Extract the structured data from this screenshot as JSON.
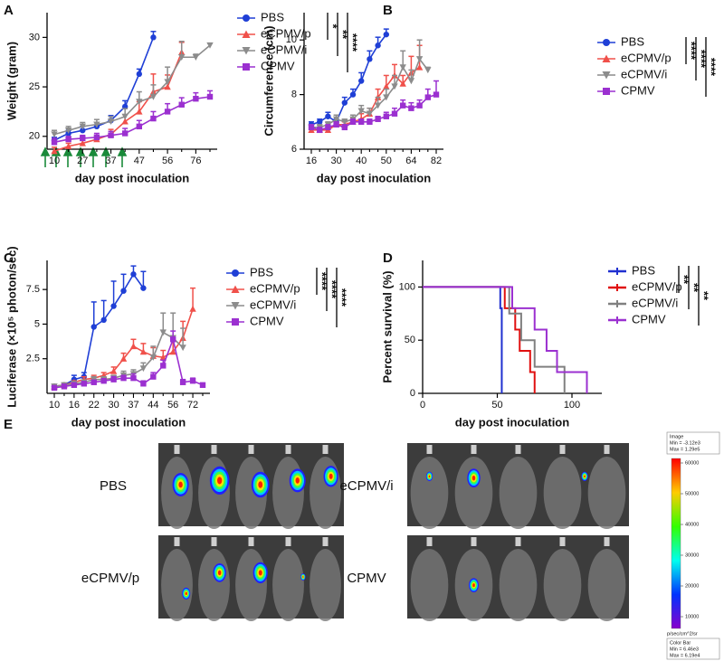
{
  "chart_data": [
    {
      "type": "line",
      "panel_label": "A",
      "ylabel": "Weight (gram)",
      "xlabel": "day post inoculation",
      "categories": [
        "10",
        null,
        "27",
        null,
        "37",
        null,
        "47",
        null,
        "56",
        null,
        "76",
        null
      ],
      "ylim": [
        18.7,
        32.5
      ],
      "yticks": [
        20,
        25,
        30
      ],
      "series": [
        {
          "name": "PBS",
          "color": "#1f3fd6",
          "marker": "circle",
          "values": [
            19.6,
            20.3,
            20.6,
            21.0,
            21.6,
            23.0,
            26.3,
            30.0,
            null,
            null,
            null,
            null
          ],
          "errors": [
            0.3,
            0.3,
            0.4,
            0.4,
            0.5,
            0.6,
            0.5,
            0.6,
            null,
            null,
            null,
            null
          ]
        },
        {
          "name": "eCPMV/p",
          "color": "#f0504a",
          "marker": "triangle",
          "values": [
            18.5,
            19.0,
            19.3,
            19.7,
            20.2,
            21.5,
            22.5,
            24.5,
            25.0,
            28.5,
            null,
            null
          ],
          "errors": [
            0.4,
            0.3,
            0.3,
            0.4,
            0.5,
            0.7,
            1.0,
            1.8,
            1.2,
            1.0,
            null,
            null
          ]
        },
        {
          "name": "eCPMV/i",
          "color": "#8c8c8c",
          "marker": "triangle-down",
          "values": [
            20.2,
            20.6,
            21.0,
            21.2,
            21.5,
            22.0,
            23.5,
            24.0,
            25.5,
            28.0,
            28.0,
            29.2
          ],
          "errors": [
            0.4,
            0.4,
            0.4,
            0.5,
            0.5,
            0.8,
            1.0,
            1.2,
            1.5,
            1.6,
            0.3,
            0.2
          ]
        },
        {
          "name": "CPMV",
          "color": "#9b30d0",
          "marker": "square",
          "values": [
            19.4,
            19.7,
            19.8,
            19.9,
            20.1,
            20.3,
            21.0,
            21.8,
            22.5,
            23.2,
            23.8,
            24.0
          ],
          "errors": [
            0.4,
            0.3,
            0.3,
            0.4,
            0.4,
            0.5,
            0.6,
            0.7,
            0.8,
            0.7,
            0.6,
            0.6
          ]
        }
      ],
      "significance": [
        "*",
        "**",
        "****"
      ]
    },
    {
      "type": "line",
      "panel_label": "B",
      "ylabel": "Circumference (cm)",
      "xlabel": "day post inoculation",
      "categories": [
        "16",
        null,
        null,
        "30",
        null,
        null,
        "40",
        null,
        null,
        "50",
        null,
        null,
        "64",
        null,
        null,
        "82"
      ],
      "ylim": [
        6,
        11
      ],
      "yticks": [
        6,
        8,
        10
      ],
      "series": [
        {
          "name": "PBS",
          "color": "#1f3fd6",
          "marker": "circle",
          "values": [
            6.9,
            7.0,
            7.2,
            7.0,
            7.7,
            8.0,
            8.5,
            9.3,
            9.8,
            10.2,
            null,
            null,
            null,
            null,
            null,
            null
          ],
          "errors": [
            0.1,
            0.1,
            0.15,
            0.1,
            0.2,
            0.2,
            0.3,
            0.3,
            0.3,
            0.2,
            null,
            null,
            null,
            null,
            null,
            null
          ]
        },
        {
          "name": "eCPMV/p",
          "color": "#f0504a",
          "marker": "triangle",
          "values": [
            6.7,
            6.7,
            6.7,
            6.9,
            6.9,
            7.0,
            7.1,
            7.3,
            7.9,
            8.3,
            8.7,
            8.4,
            8.8,
            9.0,
            null,
            null
          ],
          "errors": [
            0.1,
            0.1,
            0.1,
            0.1,
            0.1,
            0.15,
            0.2,
            0.2,
            0.3,
            0.4,
            0.4,
            0.3,
            0.6,
            0.8,
            null,
            null
          ]
        },
        {
          "name": "eCPMV/i",
          "color": "#8c8c8c",
          "marker": "triangle-down",
          "values": [
            6.8,
            6.8,
            6.9,
            7.1,
            7.0,
            7.1,
            7.4,
            7.3,
            7.6,
            7.9,
            8.3,
            9.0,
            8.5,
            9.3,
            8.9,
            null
          ],
          "errors": [
            0.1,
            0.1,
            0.1,
            0.15,
            0.1,
            0.15,
            0.2,
            0.2,
            0.3,
            0.3,
            0.4,
            0.6,
            0.4,
            0.7,
            0.1,
            null
          ]
        },
        {
          "name": "CPMV",
          "color": "#9b30d0",
          "marker": "square",
          "values": [
            6.8,
            6.7,
            6.8,
            6.9,
            6.8,
            7.0,
            7.0,
            7.0,
            7.1,
            7.2,
            7.3,
            7.6,
            7.5,
            7.6,
            7.9,
            8.0
          ],
          "errors": [
            0.1,
            0.1,
            0.1,
            0.1,
            0.1,
            0.1,
            0.1,
            0.1,
            0.1,
            0.15,
            0.2,
            0.2,
            0.2,
            0.2,
            0.3,
            0.5
          ]
        }
      ],
      "significance": [
        "****",
        "****",
        "****"
      ]
    },
    {
      "type": "line",
      "panel_label": "C",
      "ylabel": "Luciferase (×10⁵ photon/sec)",
      "xlabel": "day post inoculation",
      "categories": [
        "10",
        null,
        "16",
        null,
        "22",
        null,
        "30",
        null,
        "37",
        null,
        "44",
        null,
        "56",
        null,
        "72",
        null
      ],
      "ylim": [
        0,
        9.6
      ],
      "yticks": [
        2.5,
        5,
        7.5
      ],
      "series": [
        {
          "name": "PBS",
          "color": "#1f3fd6",
          "marker": "circle",
          "values": [
            0.5,
            0.6,
            1.0,
            1.2,
            4.8,
            5.3,
            6.3,
            7.4,
            8.6,
            7.6,
            null,
            null,
            null,
            null,
            null,
            null
          ],
          "errors": [
            0.1,
            0.1,
            0.3,
            0.3,
            1.8,
            1.4,
            1.8,
            1.2,
            0.6,
            1.2,
            null,
            null,
            null,
            null,
            null,
            null
          ]
        },
        {
          "name": "eCPMV/p",
          "color": "#f0504a",
          "marker": "triangle",
          "values": [
            0.5,
            0.6,
            0.8,
            1.0,
            1.1,
            1.3,
            1.6,
            2.5,
            3.4,
            3.0,
            2.7,
            2.6,
            3.0,
            4.0,
            6.1,
            null
          ],
          "errors": [
            0.1,
            0.1,
            0.1,
            0.2,
            0.2,
            0.2,
            0.3,
            0.4,
            0.5,
            0.6,
            0.6,
            0.5,
            0.8,
            1.2,
            1.5,
            null
          ]
        },
        {
          "name": "eCPMV/i",
          "color": "#8c8c8c",
          "marker": "triangle-down",
          "values": [
            0.5,
            0.6,
            0.7,
            0.8,
            1.0,
            1.0,
            1.1,
            1.3,
            1.4,
            1.8,
            2.6,
            4.4,
            4.0,
            3.3,
            null,
            null
          ],
          "errors": [
            0.1,
            0.1,
            0.1,
            0.1,
            0.2,
            0.2,
            0.2,
            0.3,
            0.3,
            0.4,
            0.8,
            1.4,
            1.8,
            1.4,
            null,
            null
          ]
        },
        {
          "name": "CPMV",
          "color": "#9b30d0",
          "marker": "square",
          "values": [
            0.4,
            0.5,
            0.6,
            0.7,
            0.8,
            0.9,
            1.0,
            1.1,
            1.1,
            0.7,
            1.2,
            2.0,
            3.9,
            0.8,
            0.9,
            0.6
          ],
          "errors": [
            0.1,
            0.1,
            0.1,
            0.1,
            0.1,
            0.1,
            0.2,
            0.2,
            0.3,
            0.2,
            0.3,
            0.4,
            0.6,
            0.2,
            0.2,
            0.1
          ]
        }
      ],
      "significance": [
        "****",
        "****",
        "****"
      ]
    },
    {
      "type": "step",
      "panel_label": "D",
      "ylabel": "Percent survival (%)",
      "xlabel": "day post inoculation",
      "xlim": [
        0,
        120
      ],
      "xticks": [
        0,
        50,
        100
      ],
      "ylim": [
        0,
        125
      ],
      "yticks": [
        0,
        50,
        100
      ],
      "series": [
        {
          "name": "PBS",
          "color": "#2030d0",
          "x": [
            0,
            52,
            53
          ],
          "values": [
            100,
            80,
            0
          ]
        },
        {
          "name": "eCPMV/p",
          "color": "#e01010",
          "x": [
            0,
            55,
            62,
            65,
            72,
            75
          ],
          "values": [
            100,
            80,
            60,
            40,
            20,
            0
          ]
        },
        {
          "name": "eCPMV/i",
          "color": "#808080",
          "x": [
            0,
            58,
            66,
            75,
            95
          ],
          "values": [
            100,
            75,
            50,
            25,
            0
          ]
        },
        {
          "name": "CPMV",
          "color": "#9b30d0",
          "x": [
            0,
            60,
            75,
            83,
            90,
            110
          ],
          "values": [
            100,
            80,
            60,
            40,
            20,
            0
          ]
        }
      ],
      "significance": [
        "**",
        "**",
        "**"
      ]
    }
  ],
  "imaging": {
    "panel_label": "E",
    "groups": [
      "PBS",
      "eCPMV/p",
      "eCPMV/i",
      "CPMV"
    ],
    "image_info": [
      "Image",
      "Min = -3.12e3",
      "Max = 1.29e5"
    ],
    "colorbar_ticks": [
      60000,
      50000,
      40000,
      30000,
      20000,
      10000
    ],
    "colorbar_unit": "p/sec/cm^2/sr",
    "colorbar_info": [
      "Color Bar",
      "Min = 6.46e3",
      "Max = 6.19e4"
    ]
  }
}
